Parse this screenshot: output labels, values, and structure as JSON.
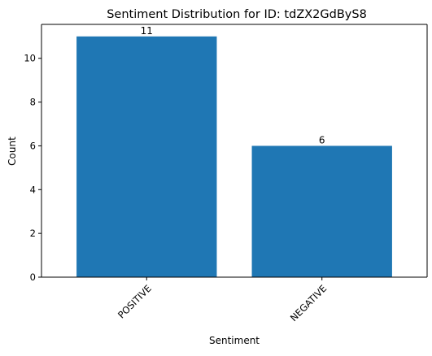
{
  "chart_data": {
    "type": "bar",
    "title": "Sentiment Distribution for ID: tdZX2GdByS8",
    "xlabel": "Sentiment",
    "ylabel": "Count",
    "categories": [
      "POSITIVE",
      "NEGATIVE"
    ],
    "values": [
      11,
      6
    ],
    "data_labels": [
      "11",
      "6"
    ],
    "ylim": [
      0,
      11.55
    ],
    "yticks": [
      0,
      2,
      4,
      6,
      8,
      10
    ],
    "ytick_labels": [
      "0",
      "2",
      "4",
      "6",
      "8",
      "10"
    ],
    "xtick_rotation": 45,
    "bar_color": "#1f77b4",
    "grid": false,
    "legend": "none"
  }
}
